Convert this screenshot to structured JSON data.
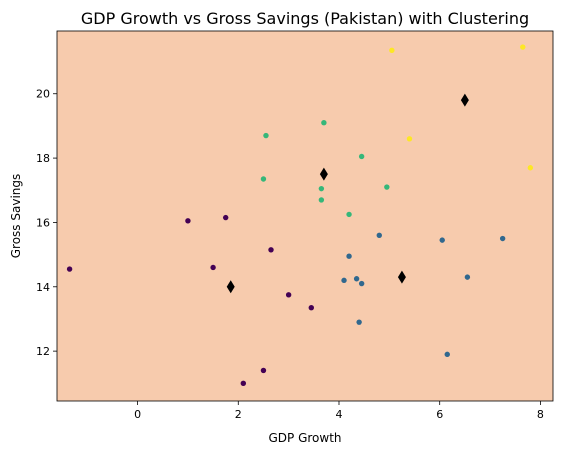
{
  "chart_data": {
    "type": "scatter",
    "title": "GDP Growth vs Gross Savings (Pakistan) with Clustering",
    "xlabel": "GDP Growth",
    "ylabel": "Gross Savings",
    "xlim": [
      -1.6,
      8.25
    ],
    "ylim": [
      10.45,
      21.95
    ],
    "x_ticks": [
      0,
      2,
      4,
      6,
      8
    ],
    "y_ticks": [
      12,
      14,
      16,
      18,
      20
    ],
    "grid": false,
    "legend": "none",
    "plot_background": "#f7cbad",
    "series": [
      {
        "color": "#440154",
        "points": [
          [
            -1.35,
            14.55
          ],
          [
            1.0,
            16.05
          ],
          [
            1.75,
            16.15
          ],
          [
            1.5,
            14.6
          ],
          [
            2.65,
            15.15
          ],
          [
            3.0,
            13.75
          ],
          [
            3.45,
            13.35
          ],
          [
            2.5,
            11.4
          ],
          [
            2.1,
            11.0
          ]
        ]
      },
      {
        "color": "#31688e",
        "points": [
          [
            4.8,
            15.6
          ],
          [
            4.2,
            14.95
          ],
          [
            4.1,
            14.2
          ],
          [
            4.35,
            14.25
          ],
          [
            4.45,
            14.1
          ],
          [
            4.4,
            12.9
          ],
          [
            6.05,
            15.45
          ],
          [
            6.55,
            14.3
          ],
          [
            7.25,
            15.5
          ],
          [
            6.15,
            11.9
          ]
        ]
      },
      {
        "color": "#35b779",
        "points": [
          [
            2.55,
            18.7
          ],
          [
            3.7,
            19.1
          ],
          [
            2.5,
            17.35
          ],
          [
            4.45,
            18.05
          ],
          [
            3.65,
            17.05
          ],
          [
            3.65,
            16.7
          ],
          [
            4.2,
            16.25
          ],
          [
            4.95,
            17.1
          ]
        ]
      },
      {
        "color": "#fde725",
        "points": [
          [
            5.05,
            21.35
          ],
          [
            7.65,
            21.45
          ],
          [
            5.4,
            18.6
          ],
          [
            7.8,
            17.7
          ]
        ]
      }
    ],
    "centroids": {
      "color": "#000000",
      "marker": "diamond",
      "points": [
        [
          1.85,
          14.0
        ],
        [
          5.25,
          14.3
        ],
        [
          3.7,
          17.5
        ],
        [
          6.5,
          19.8
        ]
      ]
    }
  }
}
